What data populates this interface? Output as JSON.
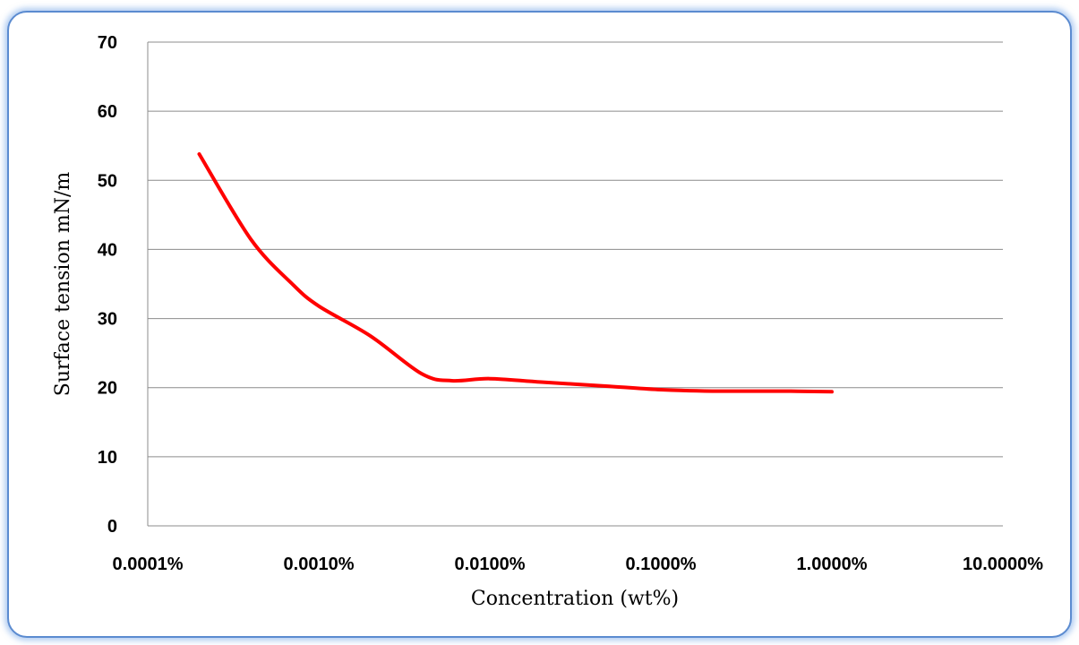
{
  "chart_data": {
    "type": "line",
    "title": "",
    "xlabel": "Concentration (wt%)",
    "ylabel": "Surface tension mN/m",
    "x_scale": "log",
    "x_ticks": [
      0.0001,
      0.001,
      0.01,
      0.1,
      1,
      10
    ],
    "x_tick_labels": [
      "0.0001%",
      "0.0010%",
      "0.0100%",
      "0.1000%",
      "1.0000%",
      "10.0000%"
    ],
    "xlim": [
      0.0001,
      10
    ],
    "y_ticks": [
      0,
      10,
      20,
      30,
      40,
      50,
      60,
      70
    ],
    "y_tick_labels": [
      "0",
      "10",
      "20",
      "30",
      "40",
      "50",
      "60",
      "70"
    ],
    "ylim": [
      0,
      70
    ],
    "grid": "horizontal",
    "legend": "none",
    "series": [
      {
        "color": "#ff0000",
        "x": [
          0.0002,
          0.0004,
          0.0007,
          0.001,
          0.002,
          0.004,
          0.006,
          0.01,
          0.02,
          0.05,
          0.1,
          0.2,
          0.5,
          1
        ],
        "y": [
          53.8,
          41.5,
          35.0,
          31.8,
          27.5,
          22.0,
          21.0,
          21.3,
          20.8,
          20.2,
          19.7,
          19.5,
          19.5,
          19.4
        ]
      }
    ]
  }
}
